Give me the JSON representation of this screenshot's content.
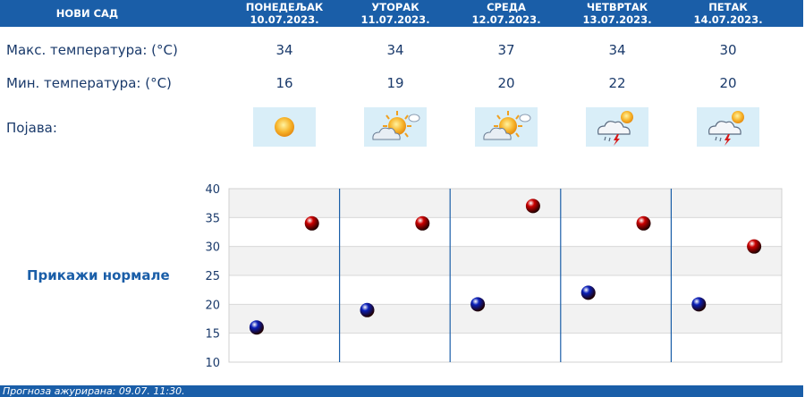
{
  "header": {
    "city": "НОВИ САД",
    "days": [
      {
        "name": "ПОНЕДЕЉАК",
        "date": "10.07.2023."
      },
      {
        "name": "УТОРАК",
        "date": "11.07.2023."
      },
      {
        "name": "СРЕДА",
        "date": "12.07.2023."
      },
      {
        "name": "ЧЕТВРТАК",
        "date": "13.07.2023."
      },
      {
        "name": "ПЕТАК",
        "date": "14.07.2023."
      }
    ]
  },
  "rows": {
    "max_label": "Макс. температура: (°C)",
    "min_label": "Мин. температура: (°C)",
    "phenomenon_label": "Појава:"
  },
  "max_temps": [
    "34",
    "34",
    "37",
    "34",
    "30"
  ],
  "min_temps": [
    "16",
    "19",
    "20",
    "22",
    "20"
  ],
  "icons": [
    "sun-icon",
    "partly-cloudy-icon",
    "partly-cloudy-icon",
    "thunderstorm-icon",
    "thunderstorm-icon"
  ],
  "normals_link": "Прикажи нормале",
  "footer": "Прогноза ажурирана:  09.07. 11:30.",
  "colors": {
    "header": "#1a5ea8",
    "max_marker": "#cc0000",
    "min_marker": "#0a1fb8",
    "text": "#1a3a6b"
  },
  "chart_data": {
    "type": "scatter",
    "categories": [
      "ПОНЕДЕЉАК",
      "УТОРАК",
      "СРЕДА",
      "ЧЕТВРТАК",
      "ПЕТАК"
    ],
    "series": [
      {
        "values": [
          34,
          34,
          37,
          34,
          30
        ],
        "color": "#cc0000"
      },
      {
        "values": [
          16,
          19,
          20,
          22,
          20
        ],
        "color": "#0a1fb8"
      }
    ],
    "yticks": [
      "10",
      "15",
      "20",
      "25",
      "30",
      "35",
      "40"
    ],
    "ylim": [
      10,
      40
    ],
    "grid": true
  }
}
